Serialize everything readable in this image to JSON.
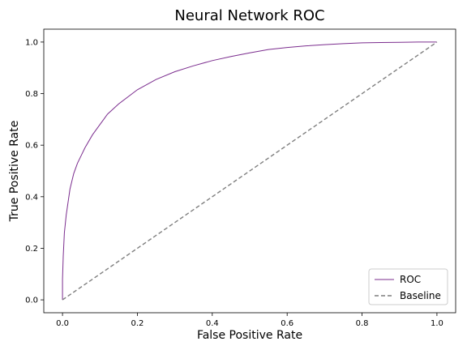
{
  "chart_data": {
    "type": "line",
    "title": "Neural Network ROC",
    "xlabel": "False Positive Rate",
    "ylabel": "True Positive Rate",
    "xlim": [
      -0.05,
      1.05
    ],
    "ylim": [
      -0.05,
      1.05
    ],
    "x_ticks": [
      "0.0",
      "0.2",
      "0.4",
      "0.6",
      "0.8",
      "1.0"
    ],
    "y_ticks": [
      "0.0",
      "0.2",
      "0.4",
      "0.6",
      "0.8",
      "1.0"
    ],
    "grid": false,
    "legend_position": "lower-right",
    "series": [
      {
        "name": "ROC",
        "color": "#7b2d8e",
        "style": "solid",
        "x": [
          0.0,
          0.0,
          0.002,
          0.005,
          0.01,
          0.015,
          0.02,
          0.03,
          0.04,
          0.05,
          0.06,
          0.08,
          0.1,
          0.12,
          0.15,
          0.2,
          0.25,
          0.3,
          0.35,
          0.4,
          0.45,
          0.5,
          0.55,
          0.6,
          0.65,
          0.7,
          0.75,
          0.8,
          0.85,
          0.9,
          0.95,
          1.0
        ],
        "y": [
          0.0,
          0.08,
          0.17,
          0.26,
          0.33,
          0.38,
          0.43,
          0.49,
          0.53,
          0.56,
          0.59,
          0.64,
          0.68,
          0.72,
          0.76,
          0.815,
          0.855,
          0.885,
          0.908,
          0.928,
          0.944,
          0.958,
          0.971,
          0.979,
          0.985,
          0.99,
          0.994,
          0.997,
          0.998,
          0.999,
          1.0,
          1.0
        ]
      },
      {
        "name": "Baseline",
        "color": "#7f7f7f",
        "style": "dashed",
        "x": [
          0.0,
          1.0
        ],
        "y": [
          0.0,
          1.0
        ]
      }
    ]
  }
}
